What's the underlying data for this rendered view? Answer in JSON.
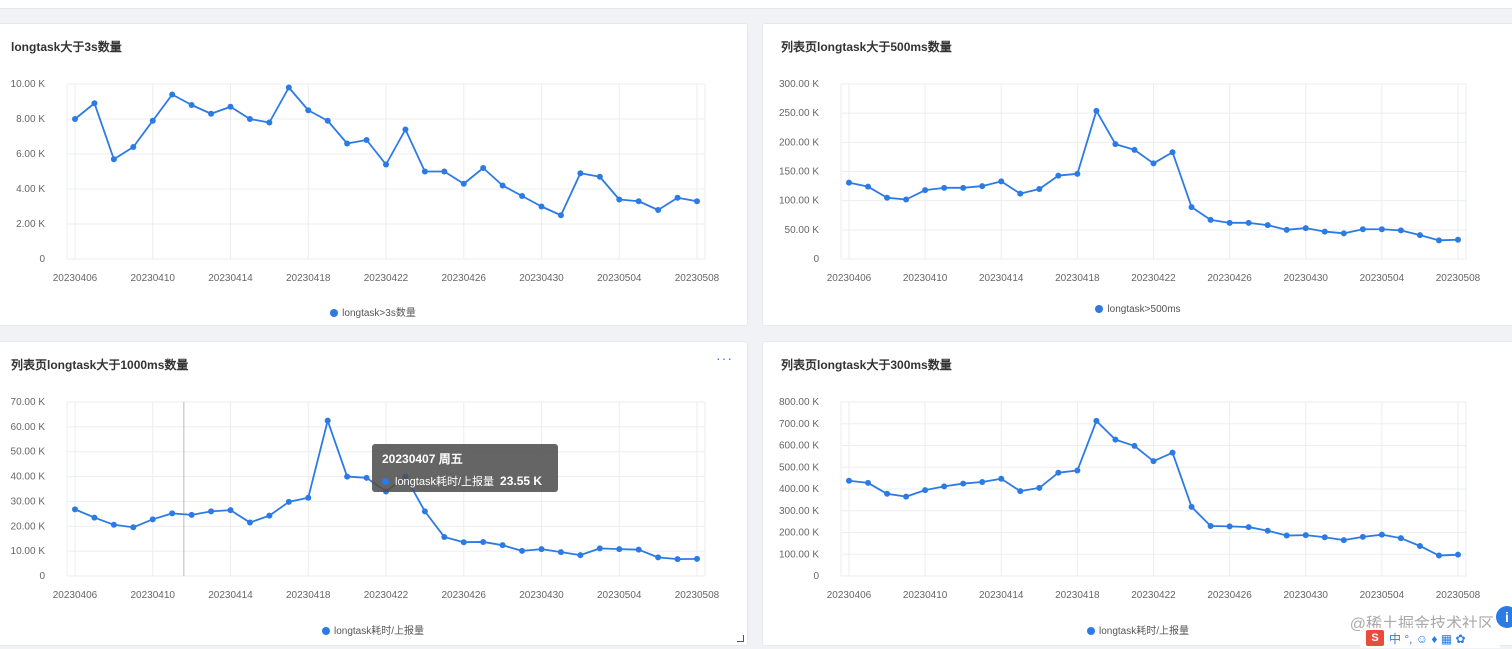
{
  "chart_data": [
    {
      "type": "line",
      "title": "longtask大于3s数量",
      "x_ticks": [
        "20230406",
        "20230410",
        "20230414",
        "20230418",
        "20230422",
        "20230426",
        "20230430",
        "20230504",
        "20230508"
      ],
      "y_ticks": [
        "0",
        "2.00 K",
        "4.00 K",
        "6.00 K",
        "8.00 K",
        "10.00 K"
      ],
      "ylim": [
        0,
        10000
      ],
      "grid": true,
      "legend": "bottom",
      "series": [
        {
          "name": "longtask>3s数量",
          "values": [
            8000,
            8900,
            5700,
            6400,
            7900,
            9400,
            8800,
            8300,
            8700,
            8000,
            7800,
            9800,
            8500,
            7900,
            6600,
            6800,
            5400,
            7400,
            5000,
            5000,
            4300,
            5200,
            4200,
            3600,
            3000,
            2500,
            4900,
            4700,
            3400,
            3300,
            2800,
            3500,
            3300
          ]
        }
      ]
    },
    {
      "type": "line",
      "title": "列表页longtask大于500ms数量",
      "x_ticks": [
        "20230406",
        "20230410",
        "20230414",
        "20230418",
        "20230422",
        "20230426",
        "20230430",
        "20230504",
        "20230508"
      ],
      "y_ticks": [
        "0",
        "50.00 K",
        "100.00 K",
        "150.00 K",
        "200.00 K",
        "250.00 K",
        "300.00 K"
      ],
      "ylim": [
        0,
        300000
      ],
      "grid": true,
      "legend": "bottom",
      "series": [
        {
          "name": "longtask>500ms",
          "values": [
            131000,
            124000,
            105000,
            102000,
            118000,
            122000,
            122000,
            125000,
            133000,
            112000,
            120000,
            143000,
            146000,
            254000,
            197000,
            187000,
            164000,
            183000,
            89000,
            67000,
            62000,
            62000,
            58000,
            50000,
            53000,
            47000,
            44000,
            51000,
            51000,
            49000,
            41000,
            32000,
            33000
          ]
        }
      ]
    },
    {
      "type": "line",
      "title": "列表页longtask大于1000ms数量",
      "x_ticks": [
        "20230406",
        "20230410",
        "20230414",
        "20230418",
        "20230422",
        "20230426",
        "20230430",
        "20230504",
        "20230508"
      ],
      "y_ticks": [
        "0",
        "10.00 K",
        "20.00 K",
        "30.00 K",
        "40.00 K",
        "50.00 K",
        "60.00 K",
        "70.00 K"
      ],
      "ylim": [
        0,
        70000
      ],
      "grid": true,
      "legend": "bottom",
      "series": [
        {
          "name": "longtask耗时/上报量",
          "values": [
            26800,
            23500,
            20600,
            19600,
            22800,
            25200,
            24600,
            26000,
            26500,
            21500,
            24300,
            29800,
            31500,
            62500,
            40000,
            39500,
            34000,
            40000,
            26000,
            15700,
            13600,
            13700,
            12400,
            10100,
            10800,
            9600,
            8400,
            11100,
            10800,
            10600,
            7500,
            6800,
            6900
          ]
        }
      ],
      "tooltip": {
        "date": "20230407 周五",
        "series_name": "longtask耗时/上报量",
        "value": "23.55 K"
      },
      "hover_index": 5.6
    },
    {
      "type": "line",
      "title": "列表页longtask大于300ms数量",
      "x_ticks": [
        "20230406",
        "20230410",
        "20230414",
        "20230418",
        "20230422",
        "20230426",
        "20230430",
        "20230504",
        "20230508"
      ],
      "y_ticks": [
        "0",
        "100.00 K",
        "200.00 K",
        "300.00 K",
        "400.00 K",
        "500.00 K",
        "600.00 K",
        "700.00 K",
        "800.00 K"
      ],
      "ylim": [
        0,
        800000
      ],
      "grid": true,
      "legend": "bottom",
      "series": [
        {
          "name": "longtask耗时/上报量",
          "values": [
            438000,
            428000,
            378000,
            365000,
            395000,
            412000,
            425000,
            432000,
            447000,
            390000,
            405000,
            475000,
            485000,
            713000,
            627000,
            598000,
            528000,
            567000,
            318000,
            230000,
            228000,
            225000,
            208000,
            186000,
            188000,
            178000,
            165000,
            180000,
            190000,
            174000,
            138000,
            94000,
            98000
          ]
        }
      ]
    }
  ],
  "more_label": "···",
  "watermark": "@稀土掘金技术社区",
  "ime": {
    "logo": "S",
    "items": "中 °, ☺ ♦ ▦ ✿"
  },
  "info_label": "i",
  "colors": {
    "series": "#2c7be5",
    "grid": "#ebedf0",
    "text": "#666666"
  }
}
